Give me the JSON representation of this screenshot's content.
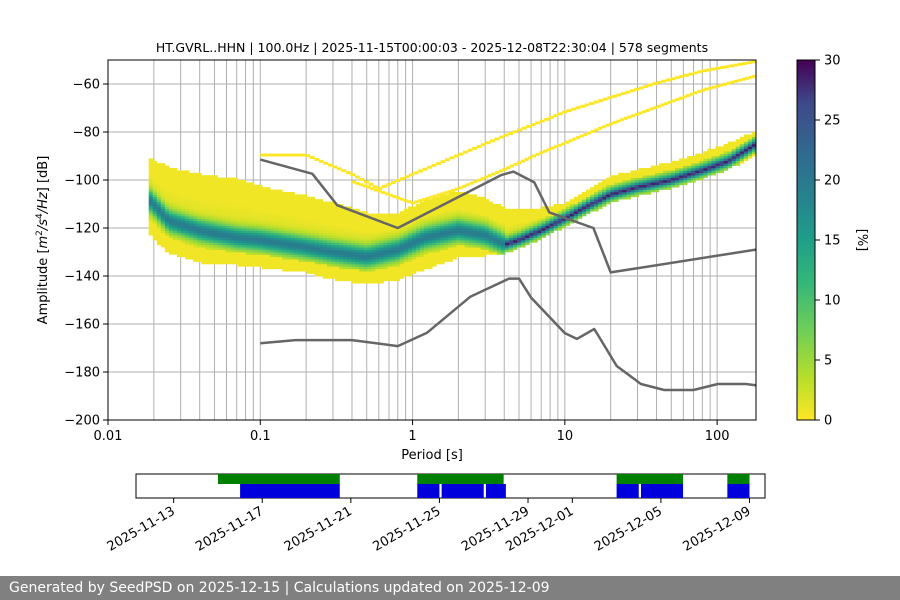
{
  "chart_data": {
    "type": "heatmap",
    "title": "HT.GVRL..HHN | 100.0Hz | 2025-11-15T00:00:03 - 2025-12-08T22:30:04 | 578 segments",
    "xlabel": "Period [s]",
    "ylabel_prefix": "Amplitude [",
    "ylabel_suffix": "] [dB]",
    "ylabel_units": [
      "m",
      "2",
      "/s",
      "4",
      "/Hz"
    ],
    "x_scale": "log",
    "xlim": [
      0.01,
      180
    ],
    "ylim": [
      -200,
      -50
    ],
    "x_ticks": [
      {
        "value": 0.01,
        "label": "0.01"
      },
      {
        "value": 0.1,
        "label": "0.1"
      },
      {
        "value": 1,
        "label": "1"
      },
      {
        "value": 10,
        "label": "10"
      },
      {
        "value": 100,
        "label": "100"
      }
    ],
    "y_ticks": [
      {
        "value": -60,
        "label": "−60"
      },
      {
        "value": -80,
        "label": "−80"
      },
      {
        "value": -100,
        "label": "−100"
      },
      {
        "value": -120,
        "label": "−120"
      },
      {
        "value": -140,
        "label": "−140"
      },
      {
        "value": -160,
        "label": "−160"
      },
      {
        "value": -180,
        "label": "−180"
      },
      {
        "value": -200,
        "label": "−200"
      }
    ],
    "period_gridlines": [
      0.02,
      0.03,
      0.04,
      0.05,
      0.06,
      0.07,
      0.08,
      0.09,
      0.1,
      0.2,
      0.3,
      0.4,
      0.5,
      0.6,
      0.7,
      0.8,
      0.9,
      1,
      2,
      3,
      4,
      5,
      6,
      7,
      8,
      9,
      10,
      20,
      30,
      40,
      50,
      60,
      70,
      80,
      90,
      100
    ],
    "psd_band": {
      "x": [
        0.0185,
        0.025,
        0.04,
        0.07,
        0.1,
        0.2,
        0.3,
        0.5,
        0.8,
        1.2,
        2,
        3,
        4,
        5,
        7,
        10,
        15,
        20,
        30,
        50,
        80,
        120,
        180
      ],
      "mode": [
        -108,
        -117,
        -121,
        -124,
        -125,
        -128,
        -130,
        -132,
        -129,
        -124,
        -121,
        -123,
        -127,
        -125,
        -121,
        -116,
        -110,
        -106,
        -103,
        -100,
        -96,
        -92,
        -85
      ],
      "low": [
        -122,
        -130,
        -134,
        -135,
        -136,
        -138,
        -141,
        -143,
        -141,
        -137,
        -132,
        -131,
        -130,
        -128,
        -124,
        -119,
        -113,
        -109,
        -106,
        -103,
        -99,
        -95,
        -89
      ],
      "high": [
        -91,
        -95,
        -98,
        -100,
        -103,
        -107,
        -110,
        -114,
        -114,
        -109,
        -105,
        -108,
        -112,
        -113,
        -112,
        -110,
        -104,
        -99,
        -96,
        -93,
        -89,
        -85,
        -80
      ],
      "upper_traces": [
        {
          "x": [
            0.1,
            0.2,
            0.4,
            0.6,
            1,
            2,
            4,
            7,
            10,
            20,
            40,
            80,
            180
          ],
          "y": [
            -90,
            -90,
            -98,
            -104,
            -98,
            -90,
            -82,
            -76,
            -72,
            -66,
            -60,
            -55,
            -51
          ]
        },
        {
          "x": [
            0.4,
            1,
            2,
            4,
            7,
            10,
            20,
            40,
            80,
            180
          ],
          "y": [
            -101,
            -110,
            -104,
            -96,
            -89,
            -85,
            -77,
            -70,
            -63,
            -57
          ]
        }
      ]
    },
    "nhnm": {
      "x": [
        0.1,
        0.22,
        0.32,
        0.8,
        3.8,
        4.6,
        6.3,
        7.9,
        15.4,
        20,
        180
      ],
      "y": [
        -91.5,
        -97.4,
        -110.5,
        -120,
        -98,
        -96.5,
        -101,
        -113.5,
        -120,
        -138.5,
        -129
      ]
    },
    "nlnm": {
      "x": [
        0.1,
        0.17,
        0.4,
        0.8,
        1.24,
        2.4,
        4.3,
        5,
        6,
        10,
        12,
        15.6,
        21.9,
        31.6,
        45,
        70,
        101,
        154,
        180
      ],
      "y": [
        -168,
        -166.7,
        -166.7,
        -169.2,
        -163.7,
        -148.6,
        -141.1,
        -141.1,
        -149,
        -163.8,
        -166.2,
        -162.1,
        -177.5,
        -185,
        -187.5,
        -187.5,
        -185,
        -185,
        -185.5
      ]
    },
    "colorbar": {
      "label": "[%]",
      "min": 0,
      "max": 30,
      "ticks": [
        "0",
        "5",
        "10",
        "15",
        "20",
        "25",
        "30"
      ],
      "colormap": "viridis_r"
    },
    "timeline": {
      "date_labels": [
        "2025-11-13",
        "2025-11-17",
        "2025-11-21",
        "2025-11-25",
        "2025-11-29",
        "2025-12-01",
        "2025-12-05",
        "2025-12-09"
      ],
      "data_available": [
        [
          15.0,
          20.5
        ],
        [
          24.0,
          27.9
        ],
        [
          33.0,
          36.0
        ],
        [
          38.0,
          39.0
        ]
      ],
      "psd_computed": [
        [
          16.0,
          20.5
        ],
        [
          24.0,
          25.0
        ],
        [
          25.1,
          27.0
        ],
        [
          27.1,
          28.0
        ],
        [
          33.0,
          34.0
        ],
        [
          34.1,
          36.0
        ],
        [
          38.0,
          39.0
        ]
      ]
    },
    "colors": {
      "model_lines": "#666666",
      "data_available": "#008000",
      "psd_computed": "#0000dd",
      "grid": "#b0b0b0"
    }
  },
  "footer": {
    "text": "Generated by SeedPSD on 2025-12-15 | Calculations updated on 2025-12-09"
  }
}
